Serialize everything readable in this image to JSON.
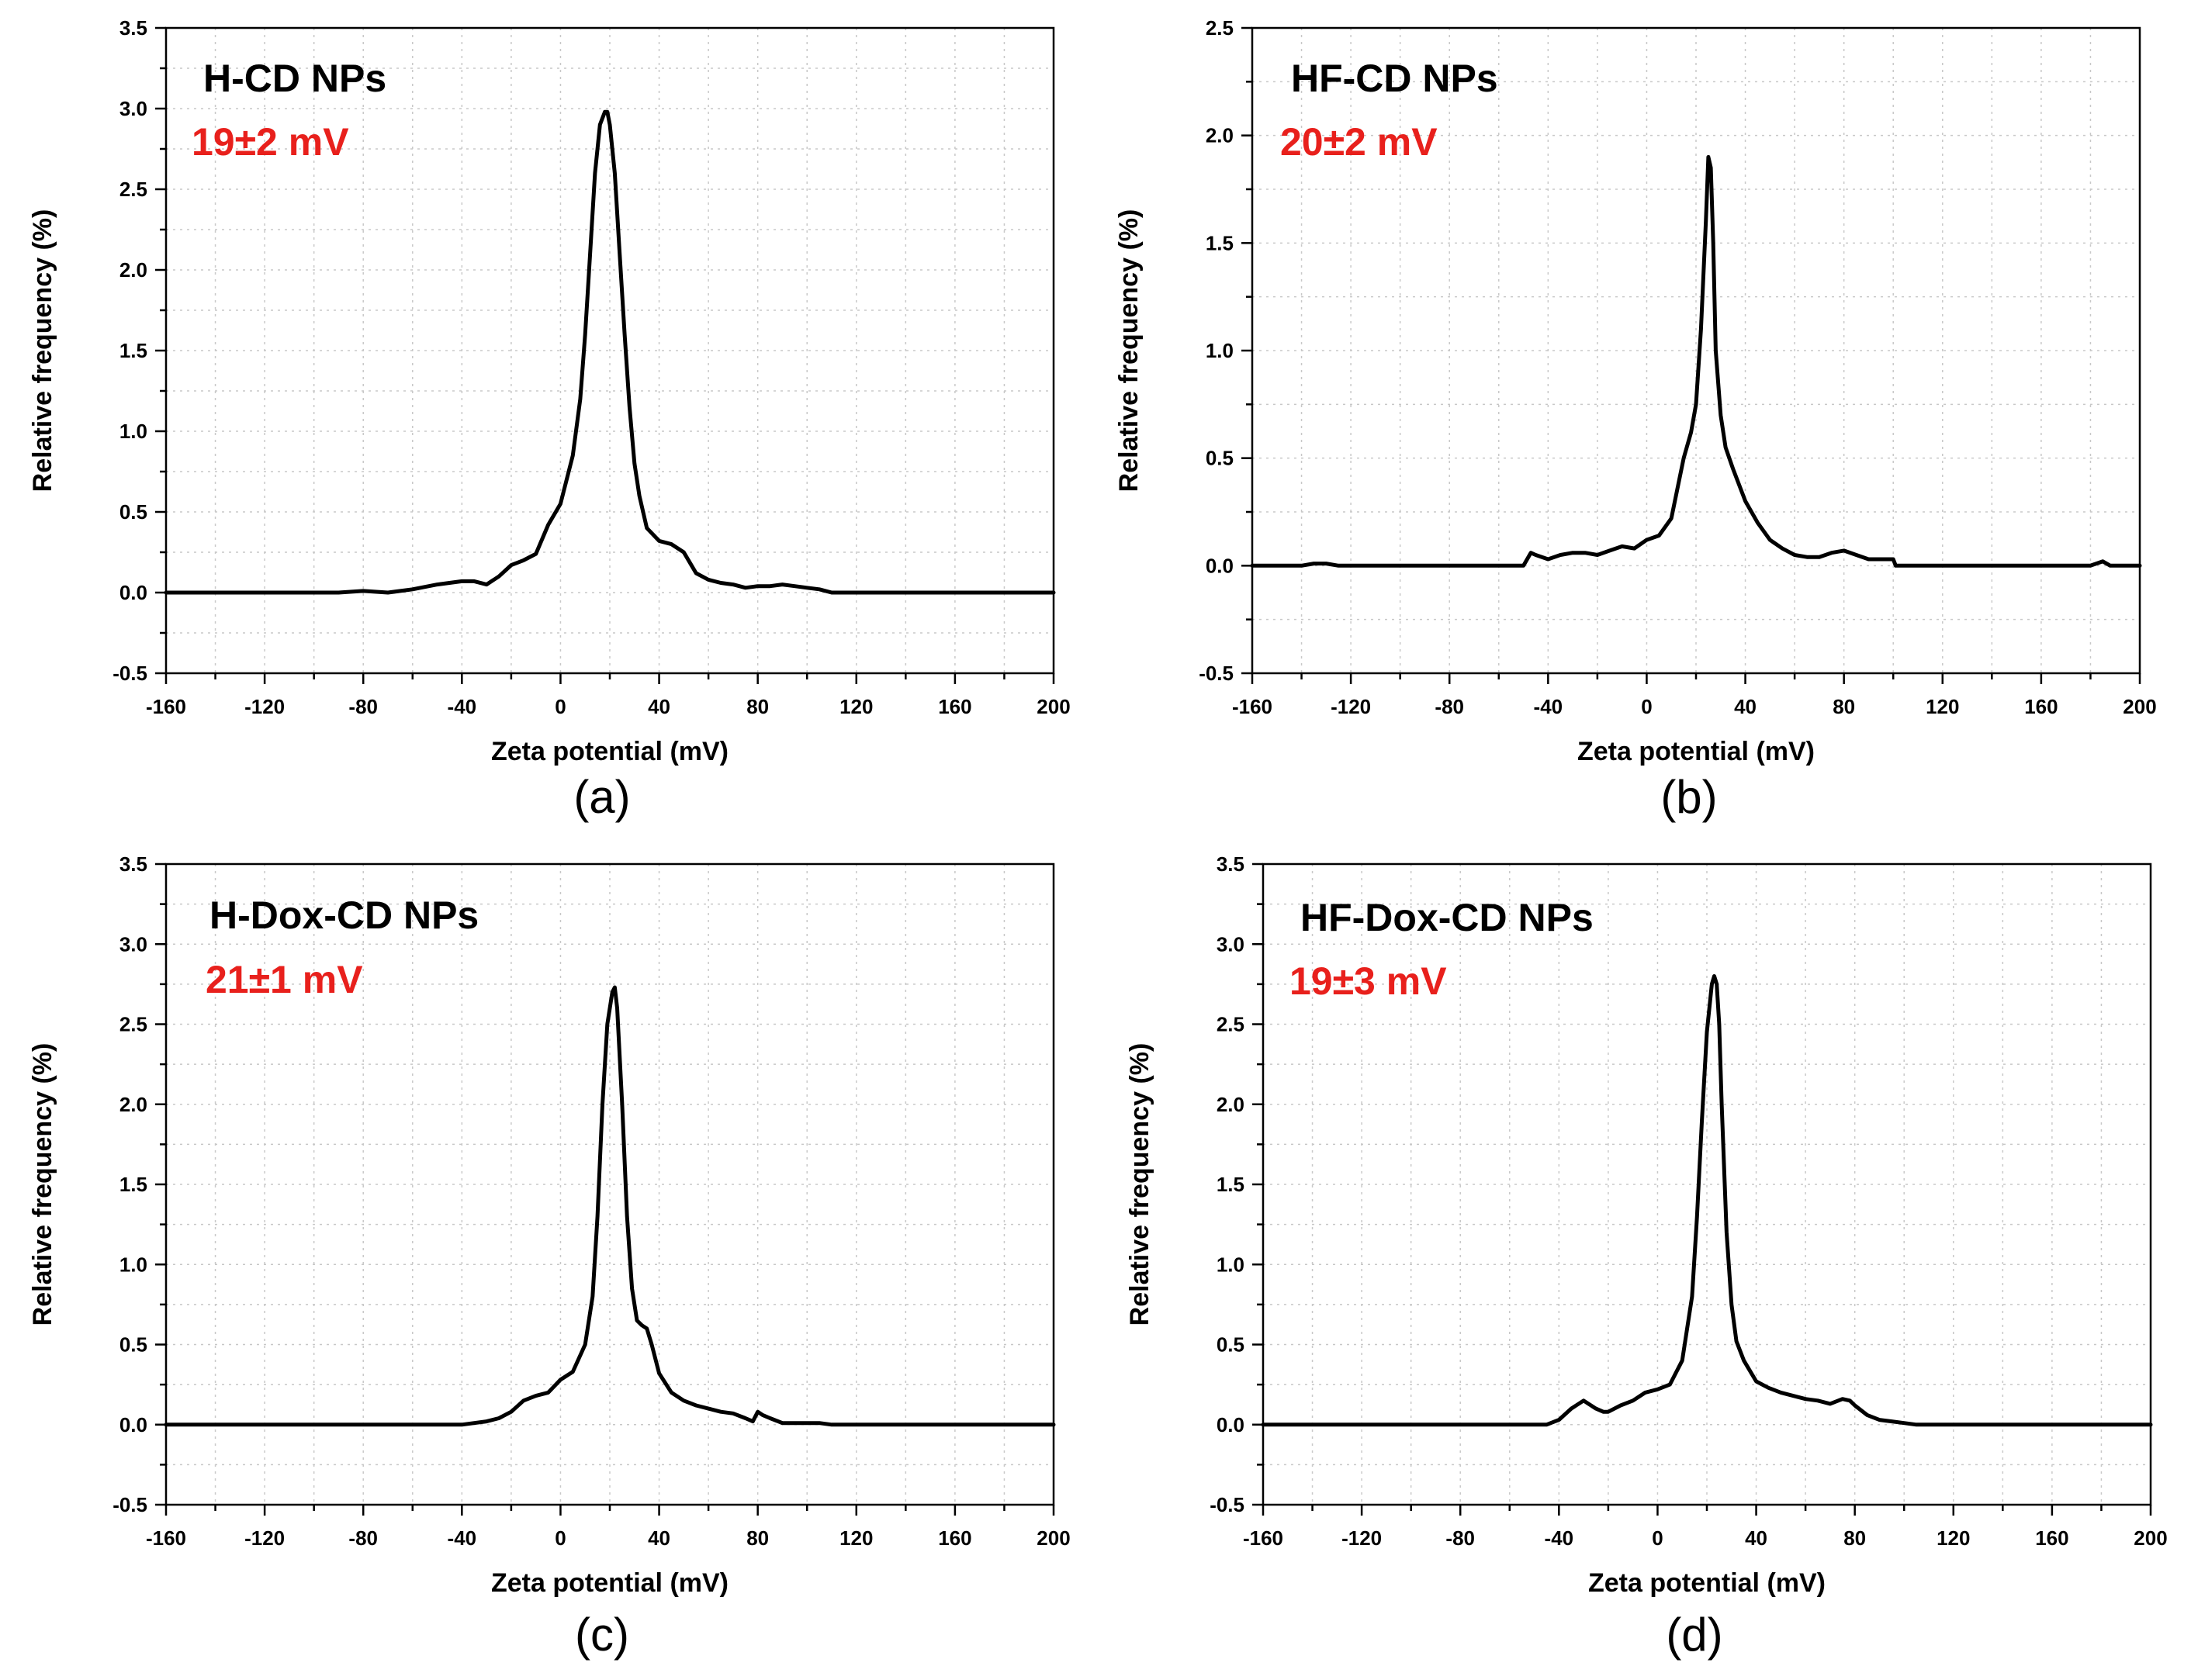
{
  "figure": {
    "annotation_color": "#e8201c",
    "line_color": "#000000",
    "grid_color": "#c8c8c8"
  },
  "chart_data": [
    {
      "type": "line",
      "panel_label": "(a)",
      "title": "H-CD NPs",
      "annotation": "19±2 mV",
      "xlabel": "Zeta potential (mV)",
      "ylabel": "Relative frequency (%)",
      "xlim": [
        -160,
        200
      ],
      "ylim": [
        -0.5,
        3.5
      ],
      "xticks": [
        -160,
        -120,
        -80,
        -40,
        0,
        40,
        80,
        120,
        160,
        200
      ],
      "yticks": [
        -0.5,
        0.0,
        0.5,
        1.0,
        1.5,
        2.0,
        2.5,
        3.0,
        3.5
      ],
      "grid": true,
      "series": [
        {
          "x": [
            -160,
            -90,
            -80,
            -70,
            -60,
            -50,
            -45,
            -40,
            -35,
            -30,
            -25,
            -20,
            -15,
            -10,
            -5,
            0,
            5,
            8,
            10,
            12,
            14,
            16,
            18,
            19,
            20,
            22,
            24,
            26,
            28,
            30,
            32,
            35,
            40,
            45,
            50,
            55,
            60,
            65,
            70,
            75,
            80,
            85,
            90,
            95,
            100,
            105,
            110,
            120,
            200
          ],
          "y": [
            0,
            0,
            0.01,
            0,
            0.02,
            0.05,
            0.06,
            0.07,
            0.07,
            0.05,
            0.1,
            0.17,
            0.2,
            0.24,
            0.42,
            0.55,
            0.85,
            1.2,
            1.6,
            2.1,
            2.6,
            2.9,
            2.98,
            2.98,
            2.9,
            2.6,
            2.1,
            1.6,
            1.15,
            0.8,
            0.6,
            0.4,
            0.32,
            0.3,
            0.25,
            0.12,
            0.08,
            0.06,
            0.05,
            0.03,
            0.04,
            0.04,
            0.05,
            0.04,
            0.03,
            0.02,
            0,
            0,
            0
          ]
        }
      ]
    },
    {
      "type": "line",
      "panel_label": "(b)",
      "title": "HF-CD NPs",
      "annotation": "20±2 mV",
      "xlabel": "Zeta potential (mV)",
      "ylabel": "Relative frequency (%)",
      "xlim": [
        -160,
        200
      ],
      "ylim": [
        -0.5,
        2.5
      ],
      "xticks": [
        -160,
        -120,
        -80,
        -40,
        0,
        40,
        80,
        120,
        160,
        200
      ],
      "yticks": [
        -0.5,
        0.0,
        0.5,
        1.0,
        1.5,
        2.0,
        2.5
      ],
      "grid": true,
      "series": [
        {
          "x": [
            -160,
            -140,
            -135,
            -130,
            -125,
            -50,
            -47,
            -45,
            -40,
            -35,
            -30,
            -25,
            -20,
            -15,
            -10,
            -5,
            0,
            5,
            10,
            15,
            18,
            20,
            22,
            24,
            25,
            26,
            27,
            28,
            30,
            32,
            35,
            40,
            45,
            50,
            55,
            60,
            65,
            70,
            75,
            80,
            85,
            90,
            95,
            100,
            101,
            180,
            185,
            188,
            200
          ],
          "y": [
            0,
            0,
            0.01,
            0.01,
            0,
            0,
            0.06,
            0.05,
            0.03,
            0.05,
            0.06,
            0.06,
            0.05,
            0.07,
            0.09,
            0.08,
            0.12,
            0.14,
            0.22,
            0.5,
            0.62,
            0.75,
            1.1,
            1.6,
            1.9,
            1.85,
            1.5,
            1.0,
            0.7,
            0.55,
            0.45,
            0.3,
            0.2,
            0.12,
            0.08,
            0.05,
            0.04,
            0.04,
            0.06,
            0.07,
            0.05,
            0.03,
            0.03,
            0.03,
            0,
            0,
            0.02,
            0,
            0
          ]
        }
      ]
    },
    {
      "type": "line",
      "panel_label": "(c)",
      "title": "H-Dox-CD NPs",
      "annotation": "21±1 mV",
      "xlabel": "Zeta potential (mV)",
      "ylabel": "Relative frequency (%)",
      "xlim": [
        -160,
        200
      ],
      "ylim": [
        -0.5,
        3.5
      ],
      "xticks": [
        -160,
        -120,
        -80,
        -40,
        0,
        40,
        80,
        120,
        160,
        200
      ],
      "yticks": [
        -0.5,
        0.0,
        0.5,
        1.0,
        1.5,
        2.0,
        2.5,
        3.0,
        3.5
      ],
      "grid": true,
      "series": [
        {
          "x": [
            -160,
            -40,
            -35,
            -30,
            -25,
            -20,
            -15,
            -10,
            -5,
            0,
            5,
            10,
            13,
            15,
            17,
            19,
            21,
            22,
            23,
            25,
            27,
            29,
            31,
            33,
            35,
            37,
            40,
            45,
            50,
            55,
            60,
            65,
            70,
            75,
            78,
            80,
            82,
            85,
            90,
            95,
            100,
            105,
            110,
            200
          ],
          "y": [
            0,
            0,
            0.01,
            0.02,
            0.04,
            0.08,
            0.15,
            0.18,
            0.2,
            0.28,
            0.33,
            0.5,
            0.8,
            1.3,
            2.0,
            2.5,
            2.7,
            2.73,
            2.6,
            2.0,
            1.3,
            0.85,
            0.65,
            0.62,
            0.6,
            0.5,
            0.32,
            0.2,
            0.15,
            0.12,
            0.1,
            0.08,
            0.07,
            0.04,
            0.02,
            0.08,
            0.06,
            0.04,
            0.01,
            0.01,
            0.01,
            0.01,
            0,
            0
          ]
        }
      ]
    },
    {
      "type": "line",
      "panel_label": "(d)",
      "title": "HF-Dox-CD NPs",
      "annotation": "19±3 mV",
      "xlabel": "Zeta potential (mV)",
      "ylabel": "Relative frequency (%)",
      "xlim": [
        -160,
        200
      ],
      "ylim": [
        -0.5,
        3.5
      ],
      "xticks": [
        -160,
        -120,
        -80,
        -40,
        0,
        40,
        80,
        120,
        160,
        200
      ],
      "yticks": [
        -0.5,
        0.0,
        0.5,
        1.0,
        1.5,
        2.0,
        2.5,
        3.0,
        3.5
      ],
      "grid": true,
      "series": [
        {
          "x": [
            -160,
            -45,
            -40,
            -35,
            -30,
            -25,
            -22,
            -20,
            -15,
            -10,
            -5,
            0,
            5,
            10,
            14,
            16,
            18,
            20,
            22,
            23,
            24,
            25,
            26,
            28,
            30,
            32,
            35,
            40,
            45,
            50,
            55,
            60,
            65,
            70,
            75,
            78,
            80,
            85,
            90,
            95,
            100,
            105,
            200
          ],
          "y": [
            0,
            0,
            0.03,
            0.1,
            0.15,
            0.1,
            0.08,
            0.08,
            0.12,
            0.15,
            0.2,
            0.22,
            0.25,
            0.4,
            0.8,
            1.3,
            1.9,
            2.45,
            2.75,
            2.8,
            2.75,
            2.5,
            2.0,
            1.2,
            0.75,
            0.52,
            0.4,
            0.27,
            0.23,
            0.2,
            0.18,
            0.16,
            0.15,
            0.13,
            0.16,
            0.15,
            0.12,
            0.06,
            0.03,
            0.02,
            0.01,
            0,
            0
          ]
        }
      ]
    }
  ]
}
